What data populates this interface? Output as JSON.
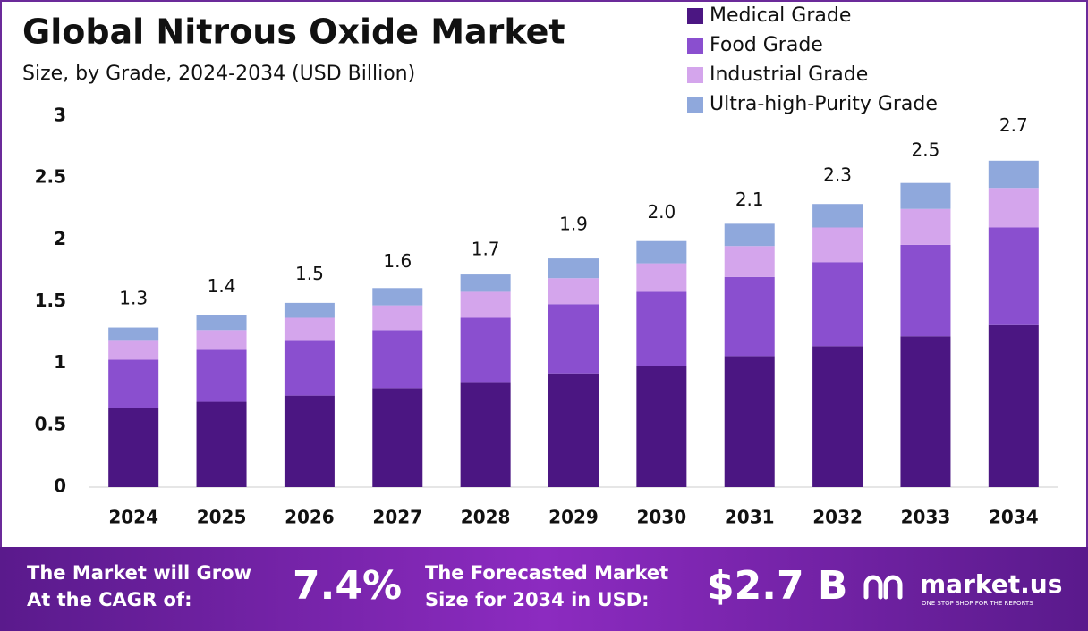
{
  "chart_data": {
    "type": "stacked_bar",
    "title": "Global Nitrous Oxide Market",
    "subtitle": "Size, by Grade, 2024-2034 (USD Billion)",
    "categories": [
      "2024",
      "2025",
      "2026",
      "2027",
      "2028",
      "2029",
      "2030",
      "2031",
      "2032",
      "2033",
      "2034"
    ],
    "series": [
      {
        "name": "Medical Grade",
        "color": "#4b1682",
        "values": [
          0.64,
          0.69,
          0.74,
          0.8,
          0.85,
          0.92,
          0.98,
          1.06,
          1.14,
          1.22,
          1.31
        ]
      },
      {
        "name": "Food Grade",
        "color": "#8a4fcf",
        "values": [
          0.39,
          0.42,
          0.45,
          0.47,
          0.52,
          0.56,
          0.6,
          0.64,
          0.68,
          0.74,
          0.79
        ]
      },
      {
        "name": "Industrial Grade",
        "color": "#d4a5ec",
        "values": [
          0.16,
          0.16,
          0.18,
          0.2,
          0.21,
          0.21,
          0.23,
          0.25,
          0.28,
          0.29,
          0.32
        ]
      },
      {
        "name": "Ultra-high-Purity Grade",
        "color": "#8fa8dc",
        "values": [
          0.1,
          0.12,
          0.12,
          0.14,
          0.14,
          0.16,
          0.18,
          0.18,
          0.19,
          0.21,
          0.22
        ]
      }
    ],
    "totals": {
      "values": [
        1.3,
        1.4,
        1.5,
        1.6,
        1.7,
        1.9,
        2.0,
        2.1,
        2.3,
        2.5,
        2.7
      ],
      "value_labels": [
        "1.3",
        "1.4",
        "1.5",
        "1.6",
        "1.7",
        "1.9",
        "2.0",
        "2.1",
        "2.3",
        "2.5",
        "2.7"
      ]
    },
    "ylim": [
      0,
      3
    ],
    "yticks": [
      0,
      0.5,
      1,
      1.5,
      2,
      2.5,
      3
    ],
    "grid": false,
    "legend": "top-right"
  },
  "footer": {
    "cagr_text": [
      "The Market will Grow",
      "At the CAGR of:"
    ],
    "cagr": "7.4%",
    "forecast_text": [
      "The Forecasted Market",
      "Size for 2034 in USD:"
    ],
    "forecast": "$2.7 B",
    "brand": "market.us",
    "tagline": "ONE STOP SHOP FOR THE REPORTS"
  }
}
